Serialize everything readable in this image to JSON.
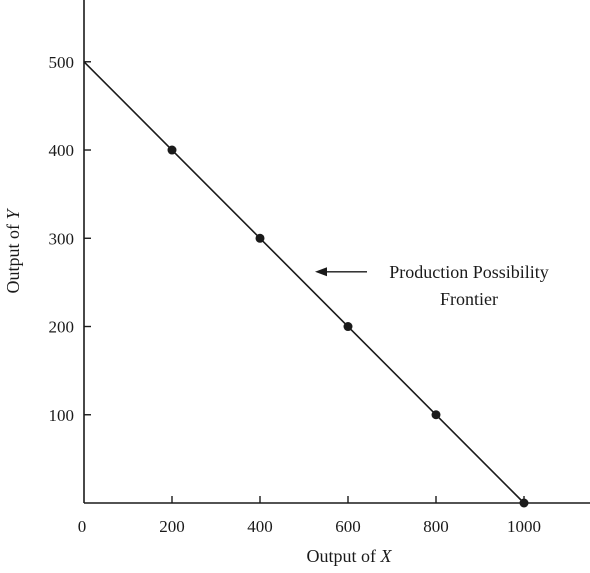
{
  "chart_data": {
    "type": "line",
    "xlabel_prefix": "Output of ",
    "xlabel_var": "X",
    "ylabel_prefix": "Output of ",
    "ylabel_var": "Y",
    "xlim": [
      0,
      1150
    ],
    "ylim": [
      0,
      570
    ],
    "x_ticks": [
      0,
      200,
      400,
      600,
      800,
      1000
    ],
    "y_ticks": [
      100,
      200,
      300,
      400,
      500
    ],
    "series": [
      {
        "x": [
          0,
          200,
          400,
          600,
          800,
          1000
        ],
        "y": [
          500,
          400,
          300,
          200,
          100,
          0
        ],
        "markers_at": [
          200,
          400,
          600,
          800,
          1000
        ]
      }
    ],
    "annotation": {
      "line1": "Production Possibility",
      "line2": "Frontier",
      "points_to_x": 525,
      "points_to_y": 262
    },
    "grid": false
  }
}
